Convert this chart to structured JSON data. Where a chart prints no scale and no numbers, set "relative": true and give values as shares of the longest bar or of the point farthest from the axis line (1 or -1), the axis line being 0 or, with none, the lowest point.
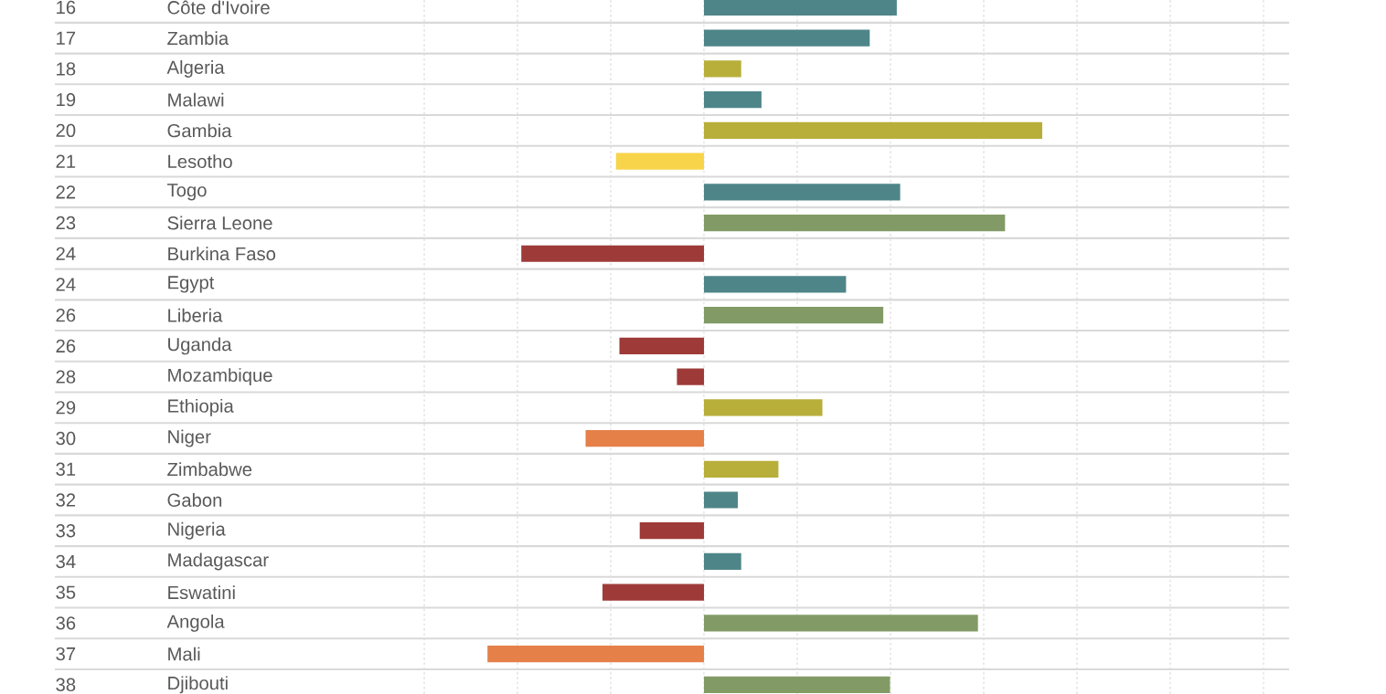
{
  "chart_data": {
    "type": "bar",
    "orientation": "horizontal",
    "relative": true,
    "grid": true,
    "categories": [
      "Côte d'Ivoire",
      "Zambia",
      "Algeria",
      "Malawi",
      "Gambia",
      "Lesotho",
      "Togo",
      "Sierra Leone",
      "Burkina Faso",
      "Egypt",
      "Liberia",
      "Uganda",
      "Mozambique",
      "Ethiopia",
      "Niger",
      "Zimbabwe",
      "Gabon",
      "Nigeria",
      "Madagascar",
      "Eswatini",
      "Angola",
      "Mali",
      "Djibouti"
    ],
    "values": [
      0.57,
      0.49,
      0.11,
      0.17,
      1,
      -0.26,
      0.58,
      0.89,
      -0.54,
      0.42,
      0.53,
      -0.25,
      -0.08,
      0.35,
      -0.35,
      0.22,
      0.1,
      -0.19,
      0.11,
      -0.3,
      0.81,
      -0.64,
      0.55
    ],
    "colors": [
      "#4e8589",
      "#4e8589",
      "#b8ae3a",
      "#4e8589",
      "#b8ae3a",
      "#f7d44a",
      "#4e8589",
      "#829b66",
      "#9e3b38",
      "#4e8589",
      "#829b66",
      "#9e3b38",
      "#9e3b38",
      "#b8ae3a",
      "#e58049",
      "#b8ae3a",
      "#4e8589",
      "#9e3b38",
      "#4e8589",
      "#9e3b38",
      "#829b66",
      "#e58049",
      "#829b66"
    ],
    "annotations": [
      "16",
      "17",
      "18",
      "19",
      "20",
      "21",
      "22",
      "23",
      "24",
      "24",
      "26",
      "26",
      "28",
      "29",
      "30",
      "31",
      "32",
      "33",
      "34",
      "35",
      "36",
      "37",
      "38"
    ]
  }
}
